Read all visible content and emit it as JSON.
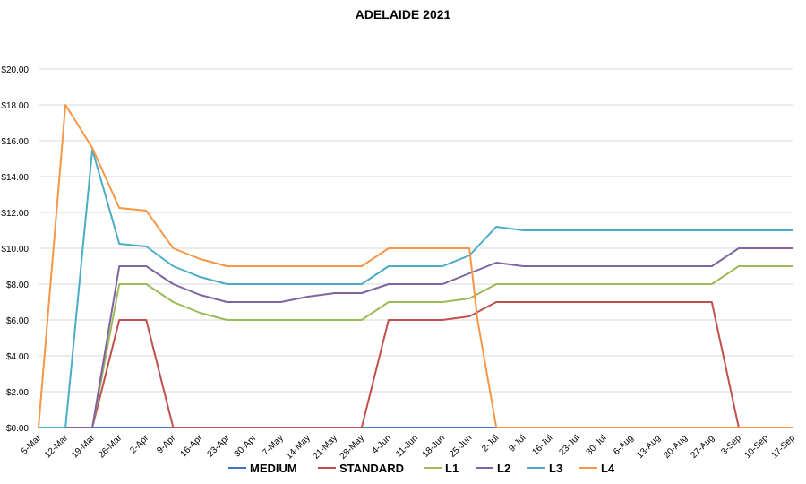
{
  "chart_data": {
    "type": "line",
    "title": "ADELAIDE 2021",
    "xlabel": "",
    "ylabel": "",
    "ylim": [
      0,
      20
    ],
    "yticks": [
      "$0.00",
      "$2.00",
      "$4.00",
      "$6.00",
      "$8.00",
      "$10.00",
      "$12.00",
      "$14.00",
      "$16.00",
      "$18.00",
      "$20.00"
    ],
    "grid": true,
    "legend": "bottom",
    "categories": [
      "5-Mar",
      "12-Mar",
      "19-Mar",
      "26-Mar",
      "2-Apr",
      "9-Apr",
      "16-Apr",
      "23-Apr",
      "30-Apr",
      "7-May",
      "14-May",
      "21-May",
      "28-May",
      "4-Jun",
      "11-Jun",
      "18-Jun",
      "25-Jun",
      "2-Jul",
      "9-Jul",
      "16-Jul",
      "23-Jul",
      "30-Jul",
      "6-Aug",
      "13-Aug",
      "20-Aug",
      "27-Aug",
      "3-Sep",
      "10-Sep",
      "17-Sep"
    ],
    "series": [
      {
        "name": "MEDIUM",
        "color": "#4472C4",
        "points": [
          [
            0,
            0
          ],
          [
            28,
            0
          ]
        ]
      },
      {
        "name": "STANDARD",
        "color": "#C0504D",
        "points": [
          [
            0,
            0
          ],
          [
            2,
            0
          ],
          [
            3,
            6
          ],
          [
            4,
            6
          ],
          [
            5,
            0
          ],
          [
            12,
            0
          ],
          [
            13,
            6
          ],
          [
            14,
            6
          ],
          [
            15,
            6
          ],
          [
            16,
            6.2
          ],
          [
            17,
            7
          ],
          [
            25,
            7
          ],
          [
            26,
            0
          ],
          [
            28,
            0
          ]
        ]
      },
      {
        "name": "L1",
        "color": "#9BBB59",
        "points": [
          [
            0,
            0
          ],
          [
            2,
            0
          ],
          [
            3,
            8
          ],
          [
            4,
            8
          ],
          [
            5,
            7
          ],
          [
            6,
            6.4
          ],
          [
            7,
            6
          ],
          [
            12,
            6
          ],
          [
            13,
            7
          ],
          [
            14,
            7
          ],
          [
            15,
            7
          ],
          [
            16,
            7.2
          ],
          [
            17,
            8
          ],
          [
            25,
            8
          ],
          [
            26,
            9
          ],
          [
            28,
            9
          ]
        ]
      },
      {
        "name": "L2",
        "color": "#8064A2",
        "points": [
          [
            0,
            0
          ],
          [
            2,
            0
          ],
          [
            3,
            9
          ],
          [
            4,
            9
          ],
          [
            5,
            8
          ],
          [
            6,
            7.4
          ],
          [
            7,
            7
          ],
          [
            8,
            7
          ],
          [
            9,
            7
          ],
          [
            10,
            7.3
          ],
          [
            11,
            7.5
          ],
          [
            12,
            7.5
          ],
          [
            13,
            8
          ],
          [
            14,
            8
          ],
          [
            15,
            8
          ],
          [
            16,
            8.6
          ],
          [
            17,
            9.2
          ],
          [
            18,
            9
          ],
          [
            25,
            9
          ],
          [
            26,
            10
          ],
          [
            28,
            10
          ]
        ]
      },
      {
        "name": "L3",
        "color": "#4BACC6",
        "points": [
          [
            0,
            0
          ],
          [
            1,
            0
          ],
          [
            2,
            15.5
          ],
          [
            3,
            10.25
          ],
          [
            4,
            10.1
          ],
          [
            5,
            9
          ],
          [
            6,
            8.4
          ],
          [
            7,
            8
          ],
          [
            12,
            8
          ],
          [
            13,
            9
          ],
          [
            14,
            9
          ],
          [
            15,
            9
          ],
          [
            16,
            9.6
          ],
          [
            17,
            11.2
          ],
          [
            18,
            11
          ],
          [
            28,
            11
          ]
        ]
      },
      {
        "name": "L4",
        "color": "#F79646",
        "points": [
          [
            0,
            0
          ],
          [
            1,
            18
          ],
          [
            2,
            15.6
          ],
          [
            3,
            12.25
          ],
          [
            4,
            12.1
          ],
          [
            5,
            10
          ],
          [
            6,
            9.4
          ],
          [
            7,
            9
          ],
          [
            12,
            9
          ],
          [
            13,
            10
          ],
          [
            14,
            10
          ],
          [
            15,
            10
          ],
          [
            16,
            10
          ],
          [
            16.3,
            6
          ],
          [
            17,
            0
          ],
          [
            28,
            0
          ]
        ]
      }
    ]
  }
}
